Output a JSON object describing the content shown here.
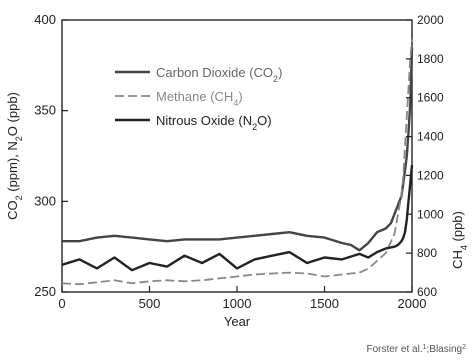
{
  "chart_data": {
    "type": "line",
    "xlabel": "Year",
    "ylabel_left": "CO2 (ppm), N2O (ppb)",
    "ylabel_right": "CH4 (ppb)",
    "xlim": [
      0,
      2000
    ],
    "ylim_left": [
      250,
      400
    ],
    "ylim_right": [
      600,
      2000
    ],
    "x_ticks": [
      0,
      500,
      1000,
      1500,
      2000
    ],
    "y_left_ticks": [
      250,
      300,
      350,
      400
    ],
    "y_right_ticks": [
      600,
      800,
      1000,
      1200,
      1400,
      1600,
      1800,
      2000
    ],
    "grid": false,
    "legend_position": "top-left",
    "credit": "Forster et al.; Blasing",
    "series": [
      {
        "name": "Carbon Dioxide (CO2)",
        "axis": "left",
        "color": "#444444",
        "dash": "solid",
        "x": [
          0,
          100,
          200,
          300,
          400,
          500,
          600,
          700,
          800,
          900,
          1000,
          1100,
          1200,
          1300,
          1400,
          1500,
          1600,
          1650,
          1700,
          1750,
          1800,
          1850,
          1880,
          1900,
          1920,
          1940,
          1950,
          1960,
          1970,
          1980,
          1990,
          2000
        ],
        "values": [
          278,
          278,
          280,
          281,
          280,
          279,
          278,
          279,
          279,
          279,
          280,
          281,
          282,
          283,
          281,
          280,
          277,
          276,
          273,
          277,
          283,
          285,
          288,
          293,
          298,
          303,
          310,
          317,
          325,
          338,
          354,
          385
        ]
      },
      {
        "name": "Methane (CH4)",
        "axis": "right",
        "color": "#888888",
        "dash": "dashed",
        "x": [
          0,
          100,
          200,
          300,
          400,
          500,
          600,
          700,
          800,
          900,
          1000,
          1100,
          1200,
          1300,
          1400,
          1500,
          1600,
          1700,
          1750,
          1800,
          1850,
          1880,
          1900,
          1920,
          1940,
          1950,
          1960,
          1970,
          1980,
          1990,
          2000
        ],
        "values": [
          645,
          640,
          650,
          660,
          645,
          655,
          660,
          655,
          660,
          670,
          680,
          690,
          695,
          700,
          695,
          680,
          690,
          700,
          720,
          760,
          800,
          860,
          900,
          1000,
          1100,
          1200,
          1350,
          1500,
          1650,
          1800,
          1900
        ]
      },
      {
        "name": "Nitrous Oxide (N2O)",
        "axis": "left",
        "color": "#222222",
        "dash": "solid",
        "x": [
          0,
          100,
          200,
          300,
          400,
          500,
          600,
          700,
          800,
          900,
          1000,
          1100,
          1200,
          1300,
          1400,
          1500,
          1600,
          1700,
          1750,
          1800,
          1850,
          1900,
          1920,
          1940,
          1950,
          1960,
          1970,
          1980,
          1990,
          2000
        ],
        "values": [
          265,
          268,
          263,
          269,
          262,
          266,
          264,
          270,
          266,
          271,
          263,
          268,
          270,
          272,
          266,
          269,
          268,
          271,
          269,
          272,
          274,
          275,
          276,
          278,
          280,
          283,
          290,
          300,
          310,
          320
        ]
      }
    ]
  }
}
